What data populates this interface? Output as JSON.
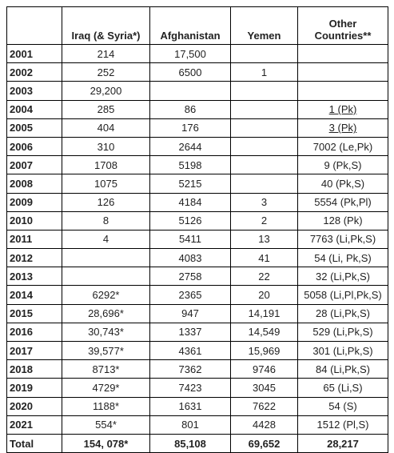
{
  "table": {
    "headers": {
      "year": "",
      "iraq": "Iraq (& Syria*)",
      "afghanistan": "Afghanistan",
      "yemen": "Yemen",
      "other": "Other Countries**"
    },
    "rows": [
      {
        "year": "2001",
        "iraq": "214",
        "afghanistan": "17,500",
        "yemen": "",
        "other": "",
        "other_underlined": false
      },
      {
        "year": "2002",
        "iraq": "252",
        "afghanistan": "6500",
        "yemen": "1",
        "other": "",
        "other_underlined": false
      },
      {
        "year": "2003",
        "iraq": "29,200",
        "afghanistan": "",
        "yemen": "",
        "other": "",
        "other_underlined": false
      },
      {
        "year": "2004",
        "iraq": "285",
        "afghanistan": "86",
        "yemen": "",
        "other": "1 (Pk)",
        "other_underlined": true
      },
      {
        "year": "2005",
        "iraq": "404",
        "afghanistan": "176",
        "yemen": "",
        "other": "3 (Pk)",
        "other_underlined": true
      },
      {
        "year": "2006",
        "iraq": "310",
        "afghanistan": "2644",
        "yemen": "",
        "other": "7002 (Le,Pk)",
        "other_underlined": false
      },
      {
        "year": "2007",
        "iraq": "1708",
        "afghanistan": "5198",
        "yemen": "",
        "other": "9 (Pk,S)",
        "other_underlined": false
      },
      {
        "year": "2008",
        "iraq": "1075",
        "afghanistan": "5215",
        "yemen": "",
        "other": "40 (Pk,S)",
        "other_underlined": false
      },
      {
        "year": "2009",
        "iraq": "126",
        "afghanistan": "4184",
        "yemen": "3",
        "other": "5554 (Pk,Pl)",
        "other_underlined": false
      },
      {
        "year": "2010",
        "iraq": "8",
        "afghanistan": "5126",
        "yemen": "2",
        "other": "128 (Pk)",
        "other_underlined": false
      },
      {
        "year": "2011",
        "iraq": "4",
        "afghanistan": "5411",
        "yemen": "13",
        "other": "7763 (Li,Pk,S)",
        "other_underlined": false
      },
      {
        "year": "2012",
        "iraq": "",
        "afghanistan": "4083",
        "yemen": "41",
        "other": "54 (Li, Pk,S)",
        "other_underlined": false
      },
      {
        "year": "2013",
        "iraq": "",
        "afghanistan": "2758",
        "yemen": "22",
        "other": "32 (Li,Pk,S)",
        "other_underlined": false
      },
      {
        "year": "2014",
        "iraq": "6292*",
        "afghanistan": "2365",
        "yemen": "20",
        "other": "5058 (Li,Pl,Pk,S)",
        "other_underlined": false
      },
      {
        "year": "2015",
        "iraq": "28,696*",
        "afghanistan": "947",
        "yemen": "14,191",
        "other": "28 (Li,Pk,S)",
        "other_underlined": false
      },
      {
        "year": "2016",
        "iraq": "30,743*",
        "afghanistan": "1337",
        "yemen": "14,549",
        "other": "529 (Li,Pk,S)",
        "other_underlined": false
      },
      {
        "year": "2017",
        "iraq": "39,577*",
        "afghanistan": "4361",
        "yemen": "15,969",
        "other": "301 (Li,Pk,S)",
        "other_underlined": false
      },
      {
        "year": "2018",
        "iraq": "8713*",
        "afghanistan": "7362",
        "yemen": "9746",
        "other": "84 (Li,Pk,S)",
        "other_underlined": false
      },
      {
        "year": "2019",
        "iraq": "4729*",
        "afghanistan": "7423",
        "yemen": "3045",
        "other": "65 (Li,S)",
        "other_underlined": false
      },
      {
        "year": "2020",
        "iraq": "1188*",
        "afghanistan": "1631",
        "yemen": "7622",
        "other": "54 (S)",
        "other_underlined": false
      },
      {
        "year": "2021",
        "iraq": "554*",
        "afghanistan": "801",
        "yemen": "4428",
        "other": "1512 (Pl,S)",
        "other_underlined": false
      }
    ],
    "total": {
      "label": "Total",
      "iraq": "154, 078*",
      "afghanistan": "85,108",
      "yemen": "69,652",
      "other": "28,217"
    }
  }
}
